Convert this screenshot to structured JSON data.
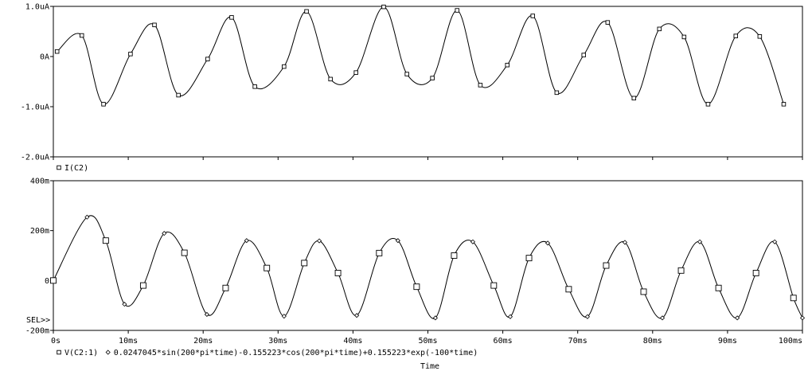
{
  "chart_data": [
    {
      "type": "line",
      "panel": "top",
      "y_unit": "uA",
      "ylim": [
        -2.0,
        1.0
      ],
      "yticks": [
        {
          "value": 1.0,
          "label": "1.0uA"
        },
        {
          "value": 0.0,
          "label": "0A"
        },
        {
          "value": -1.0,
          "label": "-1.0uA"
        },
        {
          "value": -2.0,
          "label": "-2.0uA"
        }
      ],
      "legend": [
        {
          "marker": "square",
          "label": "I(C2)"
        }
      ],
      "series": [
        {
          "name": "I(C2)",
          "marker": "square",
          "x": [
            0.5,
            3.8,
            6.7,
            10.3,
            13.5,
            16.7,
            20.6,
            23.8,
            26.9,
            30.8,
            33.8,
            37.0,
            40.4,
            44.1,
            47.2,
            50.6,
            53.9,
            57.0,
            60.6,
            64.0,
            67.2,
            70.8,
            74.0,
            77.5,
            80.9,
            84.2,
            87.4,
            91.1,
            94.3,
            97.5
          ],
          "y": [
            0.1,
            0.42,
            -0.95,
            0.05,
            0.63,
            -0.77,
            -0.05,
            0.78,
            -0.6,
            -0.2,
            0.9,
            -0.45,
            -0.32,
            0.99,
            -0.35,
            -0.43,
            0.92,
            -0.57,
            -0.17,
            0.81,
            -0.72,
            0.03,
            0.68,
            -0.83,
            0.55,
            0.39,
            -0.95,
            0.41,
            0.4,
            -0.95
          ]
        }
      ]
    },
    {
      "type": "line",
      "panel": "bottom",
      "y_unit": "m",
      "ylim": [
        -200,
        400
      ],
      "xlabel": "Time",
      "xlim": [
        0,
        100
      ],
      "xticks": [
        {
          "value": 0,
          "label": "0s"
        },
        {
          "value": 10,
          "label": "10ms"
        },
        {
          "value": 20,
          "label": "20ms"
        },
        {
          "value": 30,
          "label": "30ms"
        },
        {
          "value": 40,
          "label": "40ms"
        },
        {
          "value": 50,
          "label": "50ms"
        },
        {
          "value": 60,
          "label": "60ms"
        },
        {
          "value": 70,
          "label": "70ms"
        },
        {
          "value": 80,
          "label": "80ms"
        },
        {
          "value": 90,
          "label": "90ms"
        },
        {
          "value": 100,
          "label": "100ms"
        }
      ],
      "yticks": [
        {
          "value": 400,
          "label": "400m"
        },
        {
          "value": 200,
          "label": "200m"
        },
        {
          "value": 0,
          "label": "0"
        },
        {
          "value": -200,
          "label": "-200m"
        }
      ],
      "sel_label": "SEL>>",
      "legend": [
        {
          "marker": "square",
          "label": "V(C2:1)"
        },
        {
          "marker": "diamond",
          "label": "0.0247045*sin(200*pi*time)-0.155223*cos(200*pi*time)+0.155223*exp(-100*time)"
        }
      ],
      "series": [
        {
          "name": "V(C2:1)",
          "marker": "square",
          "x": [
            0.0,
            4.5,
            7.0,
            9.5,
            12.0,
            14.8,
            17.5,
            20.5,
            23.0,
            25.8,
            28.5,
            30.8,
            33.5,
            35.5,
            38.0,
            40.5,
            43.5,
            46.0,
            48.5,
            51.0,
            53.5,
            56.0,
            58.8,
            61.0,
            63.5,
            66.0,
            68.8,
            71.3,
            73.8,
            76.3,
            78.8,
            81.3,
            83.8,
            86.3,
            88.8,
            91.3,
            93.8,
            96.3,
            98.8,
            100.0
          ],
          "y": [
            0,
            254,
            160,
            -95,
            -20,
            189,
            111,
            -136,
            -30,
            160,
            50,
            -143,
            70,
            159,
            30,
            -140,
            110,
            160,
            -25,
            -150,
            100,
            155,
            -20,
            -145,
            90,
            150,
            -35,
            -145,
            60,
            153,
            -45,
            -150,
            40,
            155,
            -30,
            -150,
            30,
            155,
            -70,
            -150
          ]
        },
        {
          "name": "0.0247045*sin(200*pi*time)-0.155223*cos(200*pi*time)+0.155223*exp(-100*time)",
          "marker": "diamond",
          "x": [
            0.0,
            4.5,
            7.0,
            9.5,
            12.0,
            14.8,
            17.5,
            20.5,
            23.0,
            25.8,
            28.5,
            30.8,
            33.5,
            35.5,
            38.0,
            40.5,
            43.5,
            46.0,
            48.5,
            51.0,
            53.5,
            56.0,
            58.8,
            61.0,
            63.5,
            66.0,
            68.8,
            71.3,
            73.8,
            76.3,
            78.8,
            81.3,
            83.8,
            86.3,
            88.8,
            91.3,
            93.8,
            96.3,
            98.8,
            100.0
          ],
          "y": [
            0,
            254,
            160,
            -95,
            -20,
            189,
            111,
            -136,
            -30,
            160,
            50,
            -143,
            70,
            159,
            30,
            -140,
            110,
            160,
            -25,
            -150,
            100,
            155,
            -20,
            -145,
            90,
            150,
            -35,
            -145,
            60,
            153,
            -45,
            -150,
            40,
            155,
            -30,
            -150,
            30,
            155,
            -70,
            -150
          ]
        }
      ]
    }
  ]
}
